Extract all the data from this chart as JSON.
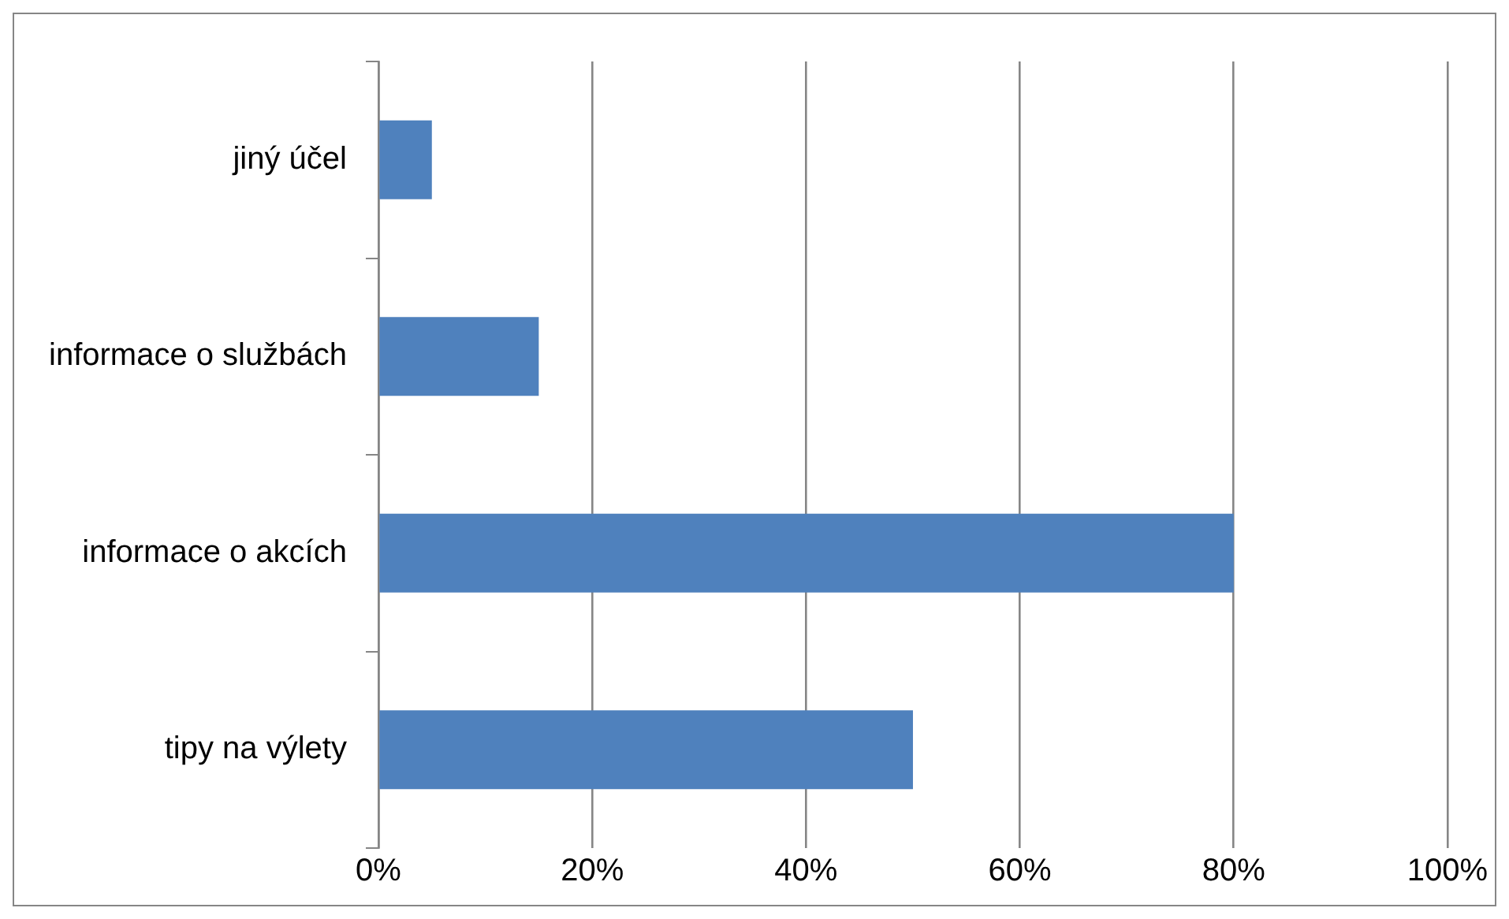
{
  "chart_data": {
    "type": "bar",
    "orientation": "horizontal",
    "categories": [
      "jiný účel",
      "informace o službách",
      "informace o akcích",
      "tipy na výlety"
    ],
    "values": [
      5,
      15,
      80,
      50
    ],
    "color": "#4f81bd",
    "xlim": [
      0,
      100
    ],
    "xticks": [
      {
        "value": 0,
        "label": "0%"
      },
      {
        "value": 20,
        "label": "20%"
      },
      {
        "value": 40,
        "label": "40%"
      },
      {
        "value": 60,
        "label": "60%"
      },
      {
        "value": 80,
        "label": "80%"
      },
      {
        "value": 100,
        "label": "100%"
      }
    ],
    "grid": "x",
    "legend": false
  }
}
